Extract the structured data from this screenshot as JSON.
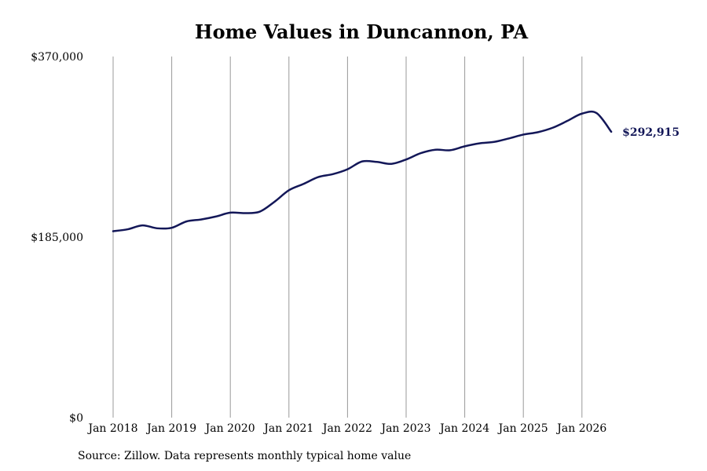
{
  "chart_data": {
    "type": "line",
    "title": "Home Values in Duncannon, PA",
    "source_note": "Source: Zillow. Data represents monthly typical home value",
    "xlabel": "",
    "ylabel": "",
    "ylim": [
      0,
      370000
    ],
    "y_ticks": [
      {
        "value": 0,
        "label": "$0"
      },
      {
        "value": 185000,
        "label": "$185,000"
      },
      {
        "value": 370000,
        "label": "$370,000"
      }
    ],
    "x_ticks": [
      {
        "value": 2018.0,
        "label": "Jan 2018"
      },
      {
        "value": 2019.0,
        "label": "Jan 2019"
      },
      {
        "value": 2020.0,
        "label": "Jan 2020"
      },
      {
        "value": 2021.0,
        "label": "Jan 2021"
      },
      {
        "value": 2022.0,
        "label": "Jan 2022"
      },
      {
        "value": 2023.0,
        "label": "Jan 2023"
      },
      {
        "value": 2024.0,
        "label": "Jan 2024"
      },
      {
        "value": 2025.0,
        "label": "Jan 2025"
      },
      {
        "value": 2026.0,
        "label": "Jan 2026"
      }
    ],
    "xlim": [
      2018.0,
      2026.5
    ],
    "grid": "vertical",
    "line_color": "#131758",
    "grid_color": "#999999",
    "end_label": "$292,915",
    "series": [
      {
        "x": [
          2018.0,
          2018.25,
          2018.5,
          2018.75,
          2019.0,
          2019.25,
          2019.5,
          2019.75,
          2020.0,
          2020.25,
          2020.5,
          2020.75,
          2021.0,
          2021.25,
          2021.5,
          2021.75,
          2022.0,
          2022.25,
          2022.5,
          2022.75,
          2023.0,
          2023.25,
          2023.5,
          2023.75,
          2024.0,
          2024.25,
          2024.5,
          2024.75,
          2025.0,
          2025.25,
          2025.5,
          2025.75,
          2026.0,
          2026.25,
          2026.5
        ],
        "values": [
          191000,
          193000,
          197000,
          194000,
          194500,
          201000,
          203000,
          206000,
          210000,
          209500,
          211000,
          221000,
          233000,
          239500,
          246500,
          249500,
          254500,
          262500,
          262000,
          260000,
          264500,
          271000,
          274500,
          274000,
          278000,
          281000,
          282500,
          286000,
          290000,
          292500,
          297000,
          304000,
          311500,
          312000,
          292915
        ]
      }
    ]
  }
}
